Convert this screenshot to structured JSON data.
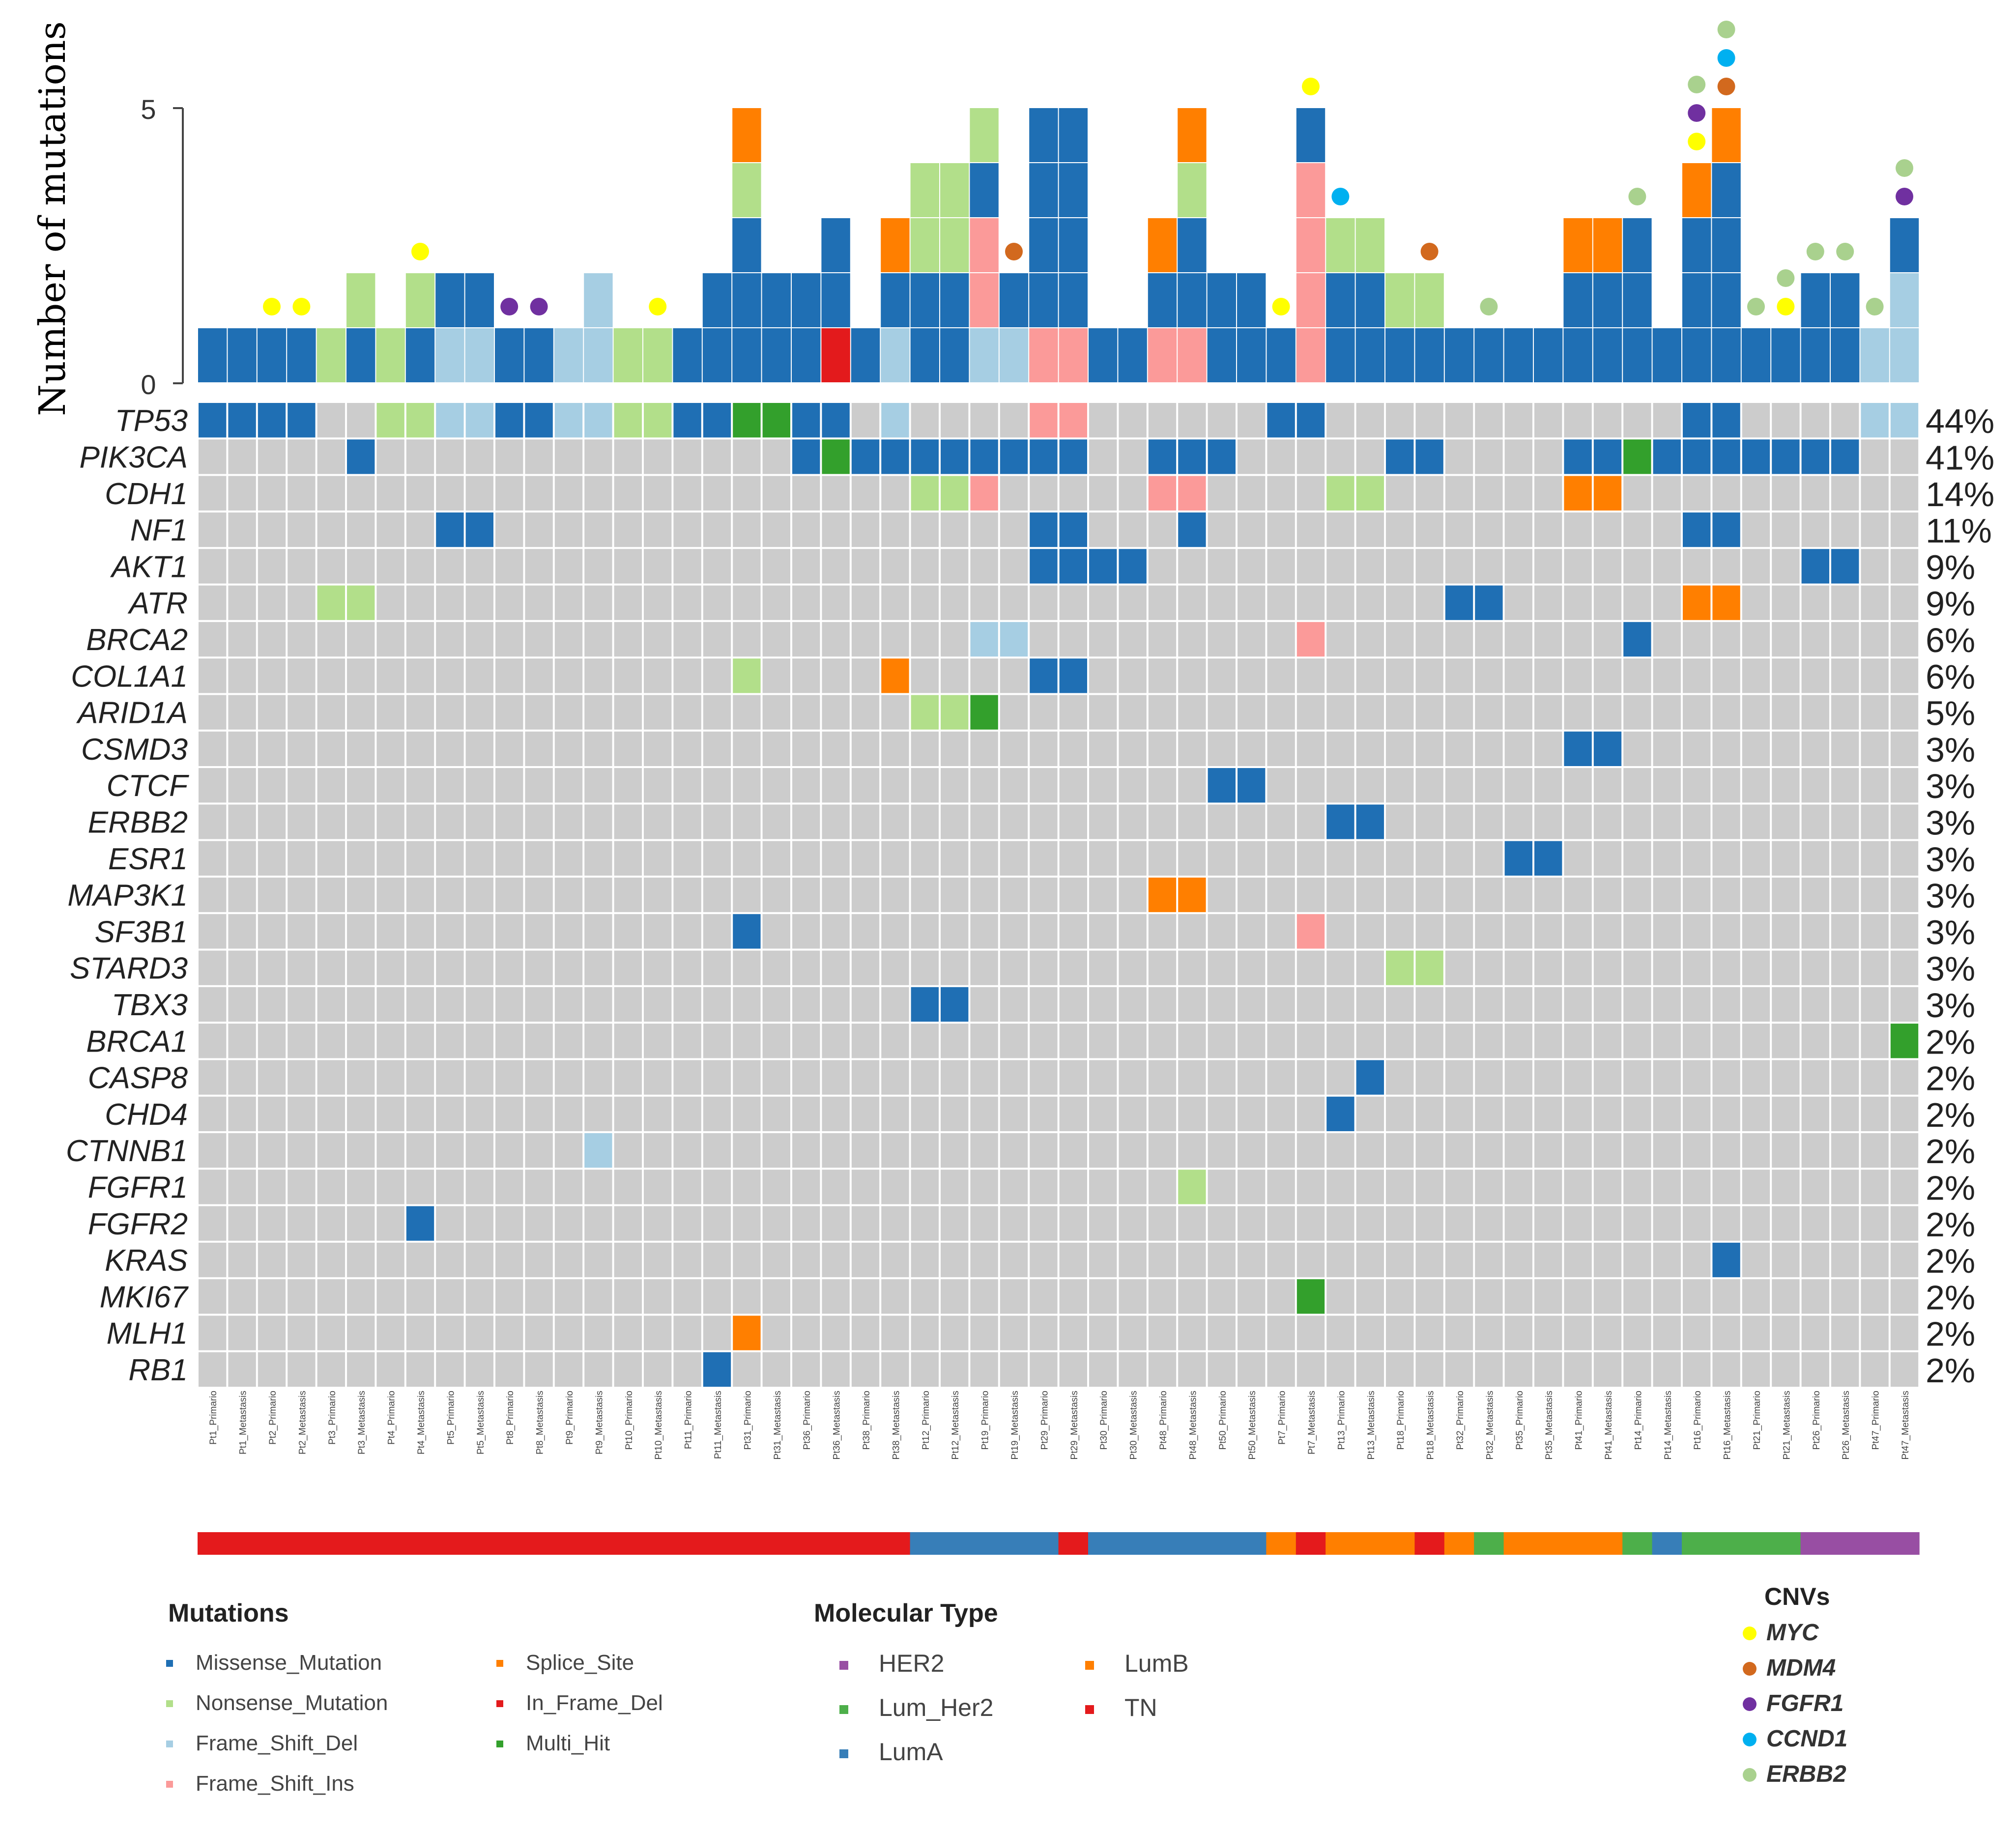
{
  "chart_data": {
    "type": "oncoplot",
    "ylabel": "Number of mutations",
    "ylim": [
      0,
      5
    ],
    "y_ticks": [
      0,
      5
    ],
    "samples": [
      "Pt1_Primario",
      "Pt1_Metastasis",
      "Pt2_Primario",
      "Pt2_Metastasis",
      "Pt3_Primario",
      "Pt3_Metastasis",
      "Pt4_Primario",
      "Pt4_Metastasis",
      "Pt5_Primario",
      "Pt5_Metastasis",
      "Pt8_Primario",
      "Pt8_Metastasis",
      "Pt9_Primario",
      "Pt9_Metastasis",
      "Pt10_Primario",
      "Pt10_Metastasis",
      "Pt11_Primario",
      "Pt11_Metastasis",
      "Pt31_Primario",
      "Pt31_Metastasis",
      "Pt36_Primario",
      "Pt36_Metastasis",
      "Pt38_Primario",
      "Pt38_Metastasis",
      "Pt12_Primario",
      "Pt12_Metastasis",
      "Pt19_Primario",
      "Pt19_Metastasis",
      "Pt29_Primario",
      "Pt29_Metastasis",
      "Pt30_Primario",
      "Pt30_Metastasis",
      "Pt48_Primario",
      "Pt48_Metastasis",
      "Pt50_Primario",
      "Pt50_Metastasis",
      "Pt7_Primario",
      "Pt7_Metastasis",
      "Pt13_Primario",
      "Pt13_Metastasis",
      "Pt18_Primario",
      "Pt18_Metastasis",
      "Pt32_Primario",
      "Pt32_Metastasis",
      "Pt35_Primario",
      "Pt35_Metastasis",
      "Pt41_Primario",
      "Pt41_Metastasis",
      "Pt14_Primario",
      "Pt14_Metastasis",
      "Pt16_Primario",
      "Pt16_Metastasis",
      "Pt21_Primario",
      "Pt21_Metastasis",
      "Pt26_Primario",
      "Pt26_Metastasis",
      "Pt47_Primario",
      "Pt47_Metastasis"
    ],
    "bars": [
      [
        "M"
      ],
      [
        "M"
      ],
      [
        "M"
      ],
      [
        "M"
      ],
      [
        "N"
      ],
      [
        "M",
        "N"
      ],
      [
        "N"
      ],
      [
        "M",
        "N"
      ],
      [
        "F",
        "M"
      ],
      [
        "F",
        "M"
      ],
      [
        "M"
      ],
      [
        "M"
      ],
      [
        "F"
      ],
      [
        "F",
        "F"
      ],
      [
        "N"
      ],
      [
        "N"
      ],
      [
        "M"
      ],
      [
        "M",
        "M"
      ],
      [
        "M",
        "M",
        "M",
        "N",
        "S"
      ],
      [
        "M",
        "M"
      ],
      [
        "M",
        "M"
      ],
      [
        "D",
        "M",
        "M"
      ],
      [
        "M"
      ],
      [
        "F",
        "M",
        "S"
      ],
      [
        "M",
        "M",
        "N",
        "N"
      ],
      [
        "M",
        "M",
        "N",
        "N"
      ],
      [
        "F",
        "I",
        "I",
        "M",
        "N"
      ],
      [
        "F",
        "M"
      ],
      [
        "I",
        "M",
        "M",
        "M",
        "M"
      ],
      [
        "I",
        "M",
        "M",
        "M",
        "M"
      ],
      [
        "M"
      ],
      [
        "M"
      ],
      [
        "I",
        "M",
        "S"
      ],
      [
        "I",
        "M",
        "M",
        "N",
        "S"
      ],
      [
        "M",
        "M"
      ],
      [
        "M",
        "M"
      ],
      [
        "M"
      ],
      [
        "I",
        "I",
        "I",
        "I",
        "M"
      ],
      [
        "M",
        "M",
        "N"
      ],
      [
        "M",
        "M",
        "N"
      ],
      [
        "M",
        "N"
      ],
      [
        "M",
        "N"
      ],
      [
        "M"
      ],
      [
        "M"
      ],
      [
        "M"
      ],
      [
        "M"
      ],
      [
        "M",
        "M",
        "S"
      ],
      [
        "M",
        "M",
        "S"
      ],
      [
        "M",
        "M",
        "M"
      ],
      [
        "M"
      ],
      [
        "M",
        "M",
        "M",
        "S"
      ],
      [
        "M",
        "M",
        "M",
        "M",
        "S"
      ],
      [
        "M"
      ],
      [
        "M"
      ],
      [
        "M",
        "M"
      ],
      [
        "M",
        "M"
      ],
      [
        "F"
      ],
      [
        "F",
        "F",
        "M"
      ]
    ],
    "cnv_dots": {
      "2": [
        "MYC"
      ],
      "3": [
        "MYC"
      ],
      "7": [
        "MYC"
      ],
      "10": [
        "FGFR1"
      ],
      "11": [
        "FGFR1"
      ],
      "15": [
        "MYC"
      ],
      "27": [
        "MDM4"
      ],
      "36": [
        "MYC"
      ],
      "37": [
        "MYC"
      ],
      "38": [
        "CCND1"
      ],
      "41": [
        "MDM4"
      ],
      "43": [
        "ERBB2"
      ],
      "48": [
        "ERBB2"
      ],
      "50": [
        "MYC",
        "FGFR1",
        "ERBB2"
      ],
      "51": [
        "MDM4",
        "CCND1",
        "ERBB2"
      ],
      "52": [
        "ERBB2"
      ],
      "53": [
        "MYC",
        "ERBB2"
      ],
      "54": [
        "ERBB2"
      ],
      "55": [
        "ERBB2"
      ],
      "56": [
        "ERBB2"
      ],
      "57": [
        "FGFR1",
        "ERBB2"
      ]
    },
    "genes": [
      "TP53",
      "PIK3CA",
      "CDH1",
      "NF1",
      "AKT1",
      "ATR",
      "BRCA2",
      "COL1A1",
      "ARID1A",
      "CSMD3",
      "CTCF",
      "ERBB2",
      "ESR1",
      "MAP3K1",
      "SF3B1",
      "STARD3",
      "TBX3",
      "BRCA1",
      "CASP8",
      "CHD4",
      "CTNNB1",
      "FGFR1",
      "FGFR2",
      "KRAS",
      "MKI67",
      "MLH1",
      "RB1"
    ],
    "percentages": [
      "44%",
      "41%",
      "14%",
      "11%",
      "9%",
      "9%",
      "6%",
      "6%",
      "5%",
      "3%",
      "3%",
      "3%",
      "3%",
      "3%",
      "3%",
      "3%",
      "3%",
      "2%",
      "2%",
      "2%",
      "2%",
      "2%",
      "2%",
      "2%",
      "2%",
      "2%",
      "2%"
    ],
    "matrix": {
      "TP53": {
        "0": "M",
        "1": "M",
        "2": "M",
        "3": "M",
        "6": "N",
        "7": "N",
        "8": "F",
        "9": "F",
        "10": "M",
        "11": "M",
        "12": "F",
        "13": "F",
        "14": "N",
        "15": "N",
        "16": "M",
        "17": "M",
        "18": "H",
        "19": "H",
        "20": "M",
        "21": "M",
        "23": "F",
        "28": "I",
        "29": "I",
        "36": "M",
        "37": "M",
        "50": "M",
        "51": "M",
        "56": "F",
        "57": "F"
      },
      "PIK3CA": {
        "5": "M",
        "20": "M",
        "21": "H",
        "22": "M",
        "23": "M",
        "24": "M",
        "25": "M",
        "26": "M",
        "27": "M",
        "28": "M",
        "29": "M",
        "32": "M",
        "33": "M",
        "34": "M",
        "40": "M",
        "41": "M",
        "46": "M",
        "47": "M",
        "48": "H",
        "49": "M",
        "50": "M",
        "51": "M",
        "52": "M",
        "53": "M",
        "54": "M",
        "55": "M"
      },
      "CDH1": {
        "24": "N",
        "25": "N",
        "26": "I",
        "32": "I",
        "33": "I",
        "38": "N",
        "39": "N",
        "46": "S",
        "47": "S"
      },
      "NF1": {
        "8": "M",
        "9": "M",
        "28": "M",
        "29": "M",
        "33": "M",
        "50": "M",
        "51": "M"
      },
      "AKT1": {
        "28": "M",
        "29": "M",
        "30": "M",
        "31": "M",
        "54": "M",
        "55": "M"
      },
      "ATR": {
        "4": "N",
        "5": "N",
        "42": "M",
        "43": "M",
        "50": "S",
        "51": "S"
      },
      "BRCA2": {
        "26": "F",
        "27": "F",
        "37": "I",
        "48": "M"
      },
      "COL1A1": {
        "18": "N",
        "23": "S",
        "28": "M",
        "29": "M"
      },
      "ARID1A": {
        "24": "N",
        "25": "N",
        "26": "H"
      },
      "CSMD3": {
        "46": "M",
        "47": "M"
      },
      "CTCF": {
        "34": "M",
        "35": "M"
      },
      "ERBB2": {
        "38": "M",
        "39": "M"
      },
      "ESR1": {
        "44": "M",
        "45": "M"
      },
      "MAP3K1": {
        "32": "S",
        "33": "S"
      },
      "SF3B1": {
        "18": "M",
        "37": "I"
      },
      "STARD3": {
        "40": "N",
        "41": "N"
      },
      "TBX3": {
        "24": "M",
        "25": "M"
      },
      "BRCA1": {
        "57": "H"
      },
      "CASP8": {
        "39": "M"
      },
      "CHD4": {
        "38": "M"
      },
      "CTNNB1": {
        "13": "F"
      },
      "FGFR1": {
        "33": "N"
      },
      "FGFR2": {
        "7": "M"
      },
      "KRAS": {
        "51": "M"
      },
      "MKI67": {
        "37": "H"
      },
      "MLH1": {
        "18": "S"
      },
      "RB1": {
        "17": "M"
      }
    },
    "molecular_type": [
      "TN",
      "TN",
      "TN",
      "TN",
      "TN",
      "TN",
      "TN",
      "TN",
      "TN",
      "TN",
      "TN",
      "TN",
      "TN",
      "TN",
      "TN",
      "TN",
      "TN",
      "TN",
      "TN",
      "TN",
      "TN",
      "TN",
      "TN",
      "TN",
      "LumA",
      "LumA",
      "LumA",
      "LumA",
      "LumA",
      "TN",
      "LumA",
      "LumA",
      "LumA",
      "LumA",
      "LumA",
      "LumA",
      "LumB",
      "TN",
      "LumB",
      "LumB",
      "LumB",
      "TN",
      "LumB",
      "Lum_Her2",
      "LumB",
      "LumB",
      "LumB",
      "LumB",
      "Lum_Her2",
      "LumA",
      "Lum_Her2",
      "Lum_Her2",
      "Lum_Her2",
      "Lum_Her2",
      "HER2",
      "HER2",
      "HER2",
      "HER2"
    ]
  },
  "legend": {
    "mutations_title": "Mutations",
    "mutations": [
      {
        "code": "M",
        "label": "Missense_Mutation",
        "color": "#1f6fb4"
      },
      {
        "code": "N",
        "label": "Nonsense_Mutation",
        "color": "#b2df8a"
      },
      {
        "code": "F",
        "label": "Frame_Shift_Del",
        "color": "#a6cee3"
      },
      {
        "code": "I",
        "label": "Frame_Shift_Ins",
        "color": "#fb9a99"
      },
      {
        "code": "S",
        "label": "Splice_Site",
        "color": "#ff7f00"
      },
      {
        "code": "D",
        "label": "In_Frame_Del",
        "color": "#e31a1c"
      },
      {
        "code": "H",
        "label": "Multi_Hit",
        "color": "#33a02c"
      }
    ],
    "molecular_title": "Molecular Type",
    "molecular": [
      {
        "label": "HER2",
        "color": "#984ea3"
      },
      {
        "label": "Lum_Her2",
        "color": "#4daf4a"
      },
      {
        "label": "LumA",
        "color": "#377eb8"
      },
      {
        "label": "LumB",
        "color": "#ff7f00"
      },
      {
        "label": "TN",
        "color": "#e41a1c"
      }
    ],
    "cnv_title": "CNVs",
    "cnvs": [
      {
        "label": "MYC",
        "color": "#ffff00"
      },
      {
        "label": "MDM4",
        "color": "#d2691e"
      },
      {
        "label": "FGFR1",
        "color": "#7030a0"
      },
      {
        "label": "CCND1",
        "color": "#00b0f0"
      },
      {
        "label": "ERBB2",
        "color": "#a9d18e"
      }
    ]
  }
}
